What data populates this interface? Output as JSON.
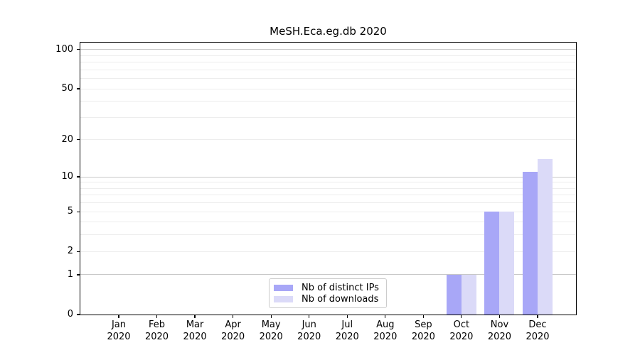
{
  "chart_data": {
    "type": "bar",
    "title": "MeSH.Eca.eg.db 2020",
    "categories": [
      "Jan 2020",
      "Feb 2020",
      "Mar 2020",
      "Apr 2020",
      "May 2020",
      "Jun 2020",
      "Jul 2020",
      "Aug 2020",
      "Sep 2020",
      "Oct 2020",
      "Nov 2020",
      "Dec 2020"
    ],
    "series": [
      {
        "name": "Nb of distinct IPs",
        "color": "#a8a7f7",
        "values": [
          0,
          0,
          0,
          0,
          0,
          0,
          0,
          0,
          0,
          1,
          5,
          11
        ]
      },
      {
        "name": "Nb of downloads",
        "color": "#dbdaf8",
        "values": [
          0,
          0,
          0,
          0,
          0,
          0,
          0,
          0,
          0,
          1,
          5,
          14
        ]
      }
    ],
    "xlabel": "",
    "ylabel": "",
    "yscale": "log1p",
    "ylim": [
      0,
      113
    ],
    "yticks": [
      0,
      1,
      2,
      5,
      10,
      20,
      50,
      100
    ],
    "major_gridlines": [
      1,
      10,
      100
    ],
    "minor_gridlines": [
      2,
      3,
      4,
      5,
      6,
      7,
      8,
      9,
      20,
      30,
      40,
      50,
      60,
      70,
      80,
      90
    ],
    "grid": "horizontal",
    "legend_position": "lower-center-inside",
    "colors": {
      "major_grid": "#c7c7c7",
      "minor_grid": "#ededed",
      "axis": "#000000",
      "text": "#000000"
    }
  }
}
